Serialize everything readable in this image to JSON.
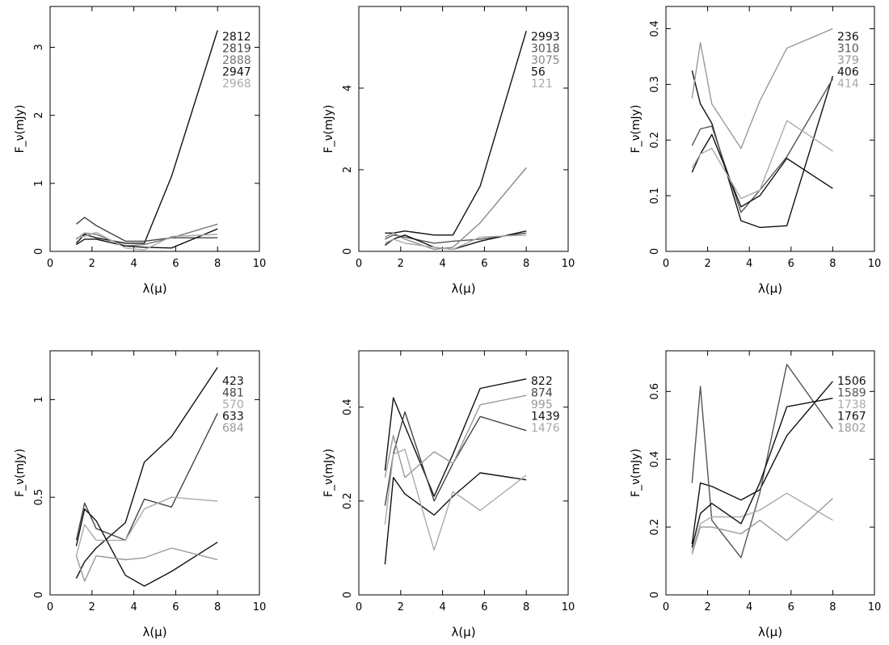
{
  "chart_data": [
    {
      "type": "line",
      "xlabel": "λ(μ)",
      "ylabel": "F_ν(mJy)",
      "xlim": [
        0,
        10
      ],
      "ylim": [
        0,
        3.6
      ],
      "xticks": [
        0,
        2,
        4,
        6,
        8,
        10
      ],
      "yticks": [
        0,
        1,
        2,
        3
      ],
      "grid": false,
      "legend": "top-right",
      "series": [
        {
          "name": "2812",
          "color": "#111111",
          "x": [
            1.25,
            1.65,
            2.2,
            3.6,
            4.5,
            5.8,
            8.0
          ],
          "y": [
            0.12,
            0.25,
            0.2,
            0.12,
            0.12,
            1.1,
            3.25
          ]
        },
        {
          "name": "2819",
          "color": "#444444",
          "x": [
            1.25,
            1.65,
            2.2,
            3.6,
            4.5,
            5.8,
            8.0
          ],
          "y": [
            0.4,
            0.5,
            0.38,
            0.15,
            0.15,
            0.2,
            0.2
          ]
        },
        {
          "name": "2888",
          "color": "#777777",
          "x": [
            1.25,
            1.65,
            2.2,
            3.6,
            4.5,
            5.8,
            8.0
          ],
          "y": [
            0.18,
            0.27,
            0.25,
            0.08,
            0.1,
            0.2,
            0.4
          ]
        },
        {
          "name": "2947",
          "color": "#111111",
          "x": [
            1.25,
            1.65,
            2.2,
            3.6,
            4.5,
            5.8,
            8.0
          ],
          "y": [
            0.1,
            0.18,
            0.18,
            0.08,
            0.06,
            0.05,
            0.33
          ]
        },
        {
          "name": "2968",
          "color": "#aaaaaa",
          "x": [
            1.25,
            1.65,
            2.2,
            3.6,
            4.5,
            5.8,
            8.0
          ],
          "y": [
            0.2,
            0.22,
            0.28,
            0.05,
            0.02,
            0.22,
            0.25
          ]
        }
      ]
    },
    {
      "type": "line",
      "xlabel": "λ(μ)",
      "ylabel": "F_ν(mJy)",
      "xlim": [
        0,
        10
      ],
      "ylim": [
        0,
        6
      ],
      "xticks": [
        0,
        2,
        4,
        6,
        8,
        10
      ],
      "yticks": [
        0,
        2,
        4
      ],
      "grid": false,
      "legend": "top-right",
      "series": [
        {
          "name": "2993",
          "color": "#111111",
          "x": [
            1.25,
            1.65,
            2.2,
            3.6,
            4.5,
            5.8,
            8.0
          ],
          "y": [
            0.45,
            0.45,
            0.5,
            0.4,
            0.4,
            1.6,
            5.4
          ]
        },
        {
          "name": "3018",
          "color": "#555555",
          "x": [
            1.25,
            1.65,
            2.2,
            3.6,
            4.5,
            5.8,
            8.0
          ],
          "y": [
            0.3,
            0.4,
            0.35,
            0.2,
            0.25,
            0.3,
            0.45
          ]
        },
        {
          "name": "3075",
          "color": "#888888",
          "x": [
            1.25,
            1.65,
            2.2,
            3.6,
            4.5,
            5.8,
            8.0
          ],
          "y": [
            0.35,
            0.45,
            0.3,
            0.05,
            0.1,
            0.7,
            2.05
          ]
        },
        {
          "name": "56",
          "color": "#111111",
          "x": [
            1.25,
            1.65,
            2.2,
            3.6,
            4.5,
            5.8,
            8.0
          ],
          "y": [
            0.15,
            0.3,
            0.4,
            0.1,
            0.05,
            0.25,
            0.5
          ]
        },
        {
          "name": "121",
          "color": "#aaaaaa",
          "x": [
            1.25,
            1.65,
            2.2,
            3.6,
            4.5,
            5.8,
            8.0
          ],
          "y": [
            0.2,
            0.3,
            0.2,
            0.1,
            0.05,
            0.35,
            0.4
          ]
        }
      ]
    },
    {
      "type": "line",
      "xlabel": "λ(μ)",
      "ylabel": "F_ν(mJy)",
      "xlim": [
        0,
        10
      ],
      "ylim": [
        0,
        0.44
      ],
      "xticks": [
        0,
        2,
        4,
        6,
        8,
        10
      ],
      "yticks": [
        0,
        0.1,
        0.2,
        0.3,
        0.4
      ],
      "grid": false,
      "legend": "top-right",
      "series": [
        {
          "name": "236",
          "color": "#111111",
          "x": [
            1.25,
            1.65,
            2.2,
            3.6,
            4.5,
            5.8,
            8.0
          ],
          "y": [
            0.325,
            0.265,
            0.23,
            0.055,
            0.043,
            0.046,
            0.315
          ]
        },
        {
          "name": "310",
          "color": "#555555",
          "x": [
            1.25,
            1.65,
            2.2,
            3.6,
            4.5,
            5.8,
            8.0
          ],
          "y": [
            0.19,
            0.22,
            0.225,
            0.07,
            0.11,
            0.17,
            0.31
          ]
        },
        {
          "name": "379",
          "color": "#999999",
          "x": [
            1.25,
            1.65,
            2.2,
            3.6,
            4.5,
            5.8,
            8.0
          ],
          "y": [
            0.275,
            0.375,
            0.265,
            0.185,
            0.27,
            0.365,
            0.4
          ]
        },
        {
          "name": "406",
          "color": "#111111",
          "x": [
            1.25,
            1.65,
            2.2,
            3.6,
            4.5,
            5.8,
            8.0
          ],
          "y": [
            0.142,
            0.175,
            0.21,
            0.08,
            0.1,
            0.167,
            0.113
          ]
        },
        {
          "name": "414",
          "color": "#aaaaaa",
          "x": [
            1.25,
            1.65,
            2.2,
            3.6,
            4.5,
            5.8,
            8.0
          ],
          "y": [
            0.15,
            0.175,
            0.185,
            0.095,
            0.11,
            0.235,
            0.18
          ]
        }
      ]
    },
    {
      "type": "line",
      "xlabel": "λ(μ)",
      "ylabel": "F_ν(mJy)",
      "xlim": [
        0,
        10
      ],
      "ylim": [
        0,
        1.25
      ],
      "xticks": [
        0,
        2,
        4,
        6,
        8,
        10
      ],
      "yticks": [
        0,
        0.5,
        1
      ],
      "grid": false,
      "legend": "top-right",
      "series": [
        {
          "name": "423",
          "color": "#111111",
          "x": [
            1.25,
            1.65,
            2.2,
            3.6,
            4.5,
            5.8,
            8.0
          ],
          "y": [
            0.085,
            0.17,
            0.24,
            0.37,
            0.68,
            0.81,
            1.165
          ]
        },
        {
          "name": "481",
          "color": "#444444",
          "x": [
            1.25,
            1.65,
            2.2,
            3.6,
            4.5,
            5.8,
            8.0
          ],
          "y": [
            0.28,
            0.47,
            0.34,
            0.28,
            0.49,
            0.45,
            0.93
          ]
        },
        {
          "name": "570",
          "color": "#aaaaaa",
          "x": [
            1.25,
            1.65,
            2.2,
            3.6,
            4.5,
            5.8,
            8.0
          ],
          "y": [
            0.2,
            0.36,
            0.28,
            0.28,
            0.44,
            0.5,
            0.48
          ]
        },
        {
          "name": "633",
          "color": "#111111",
          "x": [
            1.25,
            1.65,
            2.2,
            3.6,
            4.5,
            5.8,
            8.0
          ],
          "y": [
            0.25,
            0.44,
            0.38,
            0.1,
            0.045,
            0.12,
            0.27
          ]
        },
        {
          "name": "684",
          "color": "#999999",
          "x": [
            1.25,
            1.65,
            2.2,
            3.6,
            4.5,
            5.8,
            8.0
          ],
          "y": [
            0.2,
            0.07,
            0.2,
            0.18,
            0.19,
            0.24,
            0.18
          ]
        }
      ]
    },
    {
      "type": "line",
      "xlabel": "λ(μ)",
      "ylabel": "F_ν(mJy)",
      "xlim": [
        0,
        10
      ],
      "ylim": [
        0,
        0.52
      ],
      "xticks": [
        0,
        2,
        4,
        6,
        8,
        10
      ],
      "yticks": [
        0,
        0.2,
        0.4
      ],
      "grid": false,
      "legend": "top-right",
      "series": [
        {
          "name": "822",
          "color": "#111111",
          "x": [
            1.25,
            1.65,
            2.2,
            3.6,
            4.5,
            5.8,
            8.0
          ],
          "y": [
            0.265,
            0.42,
            0.36,
            0.21,
            0.3,
            0.44,
            0.46
          ]
        },
        {
          "name": "874",
          "color": "#444444",
          "x": [
            1.25,
            1.65,
            2.2,
            3.6,
            4.5,
            5.8,
            8.0
          ],
          "y": [
            0.19,
            0.3,
            0.39,
            0.2,
            0.28,
            0.38,
            0.35
          ]
        },
        {
          "name": "995",
          "color": "#999999",
          "x": [
            1.25,
            1.65,
            2.2,
            3.6,
            4.5,
            5.8,
            8.0
          ],
          "y": [
            0.25,
            0.34,
            0.25,
            0.305,
            0.28,
            0.405,
            0.425
          ]
        },
        {
          "name": "1439",
          "color": "#111111",
          "x": [
            1.25,
            1.65,
            2.2,
            3.6,
            4.5,
            5.8,
            8.0
          ],
          "y": [
            0.065,
            0.25,
            0.215,
            0.17,
            0.21,
            0.26,
            0.245
          ]
        },
        {
          "name": "1476",
          "color": "#aaaaaa",
          "x": [
            1.25,
            1.65,
            2.2,
            3.6,
            4.5,
            5.8,
            8.0
          ],
          "y": [
            0.15,
            0.3,
            0.31,
            0.095,
            0.22,
            0.18,
            0.255
          ]
        }
      ]
    },
    {
      "type": "line",
      "xlabel": "λ(μ)",
      "ylabel": "F_ν(mJy)",
      "xlim": [
        0,
        10
      ],
      "ylim": [
        0,
        0.72
      ],
      "xticks": [
        0,
        2,
        4,
        6,
        8,
        10
      ],
      "yticks": [
        0,
        0.2,
        0.4,
        0.6
      ],
      "grid": false,
      "legend": "top-right",
      "series": [
        {
          "name": "1506",
          "color": "#111111",
          "x": [
            1.25,
            1.65,
            2.2,
            3.6,
            4.5,
            5.8,
            8.0
          ],
          "y": [
            0.15,
            0.33,
            0.32,
            0.28,
            0.31,
            0.47,
            0.63
          ]
        },
        {
          "name": "1589",
          "color": "#555555",
          "x": [
            1.25,
            1.65,
            2.2,
            3.6,
            4.5,
            5.8,
            8.0
          ],
          "y": [
            0.33,
            0.615,
            0.22,
            0.11,
            0.3,
            0.68,
            0.49
          ]
        },
        {
          "name": "1738",
          "color": "#aaaaaa",
          "x": [
            1.25,
            1.65,
            2.2,
            3.6,
            4.5,
            5.8,
            8.0
          ],
          "y": [
            0.13,
            0.21,
            0.23,
            0.23,
            0.25,
            0.3,
            0.22
          ]
        },
        {
          "name": "1767",
          "color": "#111111",
          "x": [
            1.25,
            1.65,
            2.2,
            3.6,
            4.5,
            5.8,
            8.0
          ],
          "y": [
            0.14,
            0.24,
            0.27,
            0.21,
            0.33,
            0.555,
            0.58
          ]
        },
        {
          "name": "1802",
          "color": "#999999",
          "x": [
            1.25,
            1.65,
            2.2,
            3.6,
            4.5,
            5.8,
            8.0
          ],
          "y": [
            0.12,
            0.2,
            0.2,
            0.18,
            0.22,
            0.16,
            0.285
          ]
        }
      ]
    }
  ]
}
